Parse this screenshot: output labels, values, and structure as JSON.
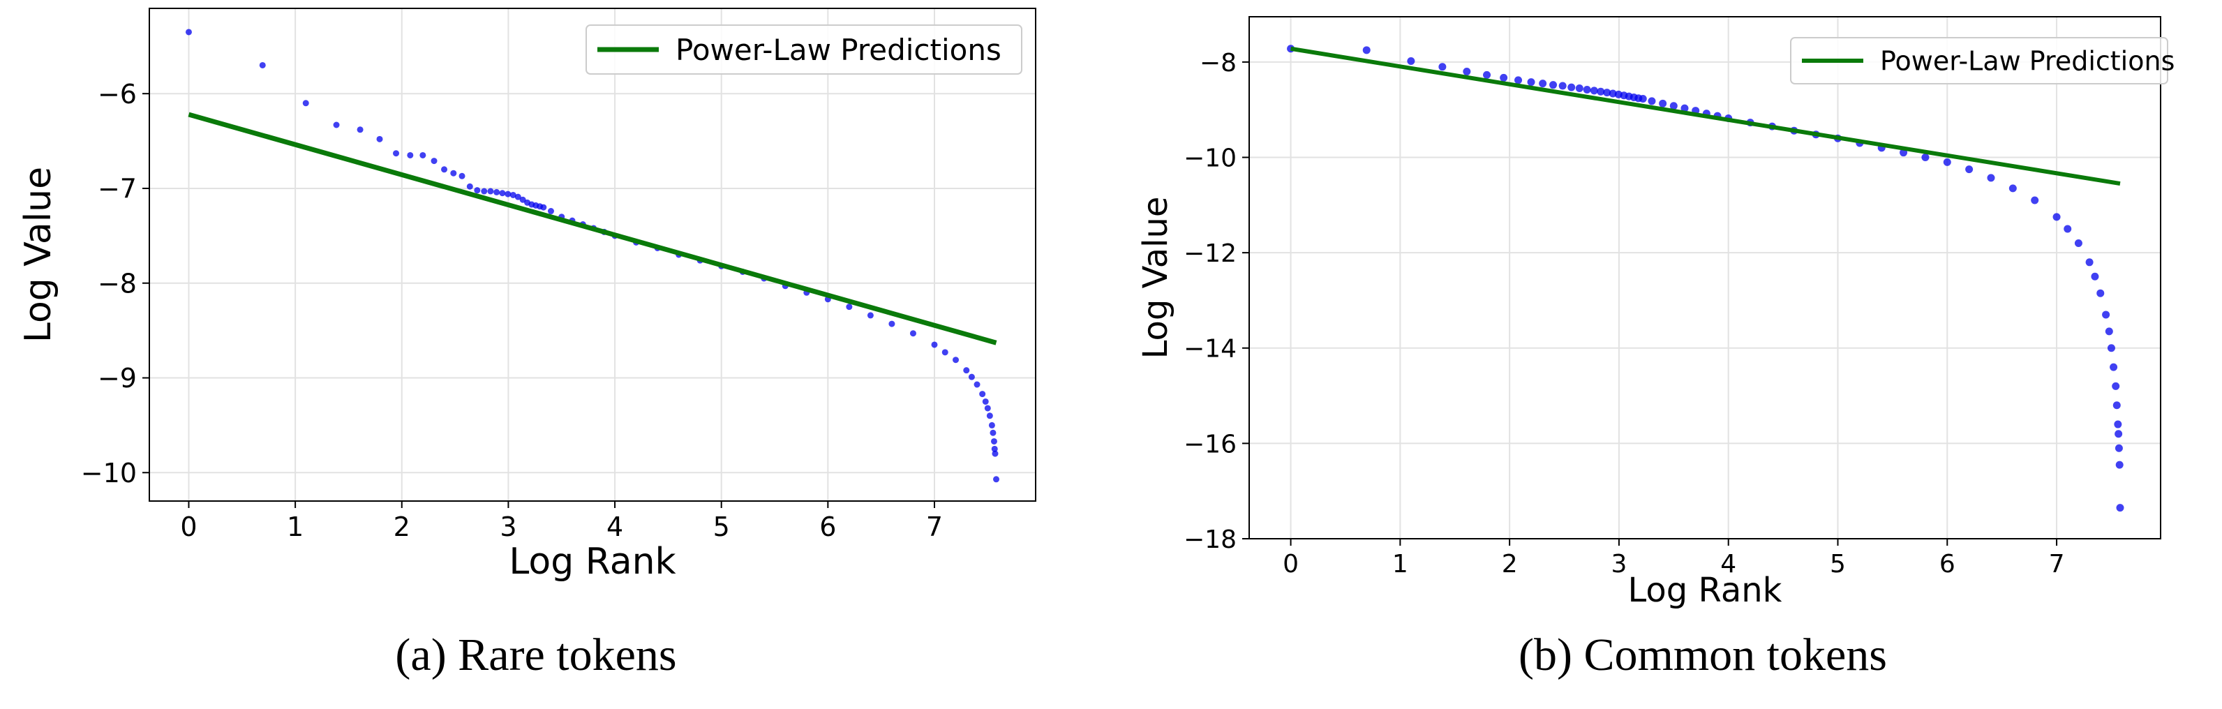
{
  "colors": {
    "points": "#0000ee",
    "fit": "#0a7a0a",
    "grid": "#e2e2e2",
    "frame": "#000000"
  },
  "figures": [
    {
      "caption": "(a) Rare tokens"
    },
    {
      "caption": "(b) Common tokens"
    }
  ],
  "chart_data": [
    {
      "type": "scatter",
      "xlabel": "Log Rank",
      "ylabel": "Log Value",
      "xlim": [
        -0.37,
        7.95
      ],
      "ylim": [
        -10.3,
        -5.1
      ],
      "xticks": [
        0,
        1,
        2,
        3,
        4,
        5,
        6,
        7
      ],
      "yticks": [
        -10,
        -9,
        -8,
        -7,
        -6
      ],
      "grid": true,
      "legend": {
        "position": "top-right",
        "entries": [
          "Power-Law Predictions"
        ]
      },
      "series": [
        {
          "type": "scatter",
          "points": [
            [
              0,
              -5.35
            ],
            [
              0.693,
              -5.7
            ],
            [
              1.099,
              -6.1
            ],
            [
              1.386,
              -6.33
            ],
            [
              1.609,
              -6.38
            ],
            [
              1.792,
              -6.48
            ],
            [
              1.946,
              -6.63
            ],
            [
              2.079,
              -6.65
            ],
            [
              2.197,
              -6.65
            ],
            [
              2.303,
              -6.71
            ],
            [
              2.398,
              -6.8
            ],
            [
              2.485,
              -6.84
            ],
            [
              2.565,
              -6.87
            ],
            [
              2.639,
              -6.98
            ],
            [
              2.708,
              -7.02
            ],
            [
              2.773,
              -7.03
            ],
            [
              2.833,
              -7.03
            ],
            [
              2.89,
              -7.04
            ],
            [
              2.944,
              -7.05
            ],
            [
              2.996,
              -7.06
            ],
            [
              3.045,
              -7.07
            ],
            [
              3.091,
              -7.09
            ],
            [
              3.136,
              -7.12
            ],
            [
              3.178,
              -7.15
            ],
            [
              3.219,
              -7.17
            ],
            [
              3.258,
              -7.18
            ],
            [
              3.296,
              -7.19
            ],
            [
              3.33,
              -7.2
            ],
            [
              3.4,
              -7.24
            ],
            [
              3.5,
              -7.3
            ],
            [
              3.6,
              -7.34
            ],
            [
              3.7,
              -7.38
            ],
            [
              3.8,
              -7.42
            ],
            [
              3.9,
              -7.46
            ],
            [
              4.0,
              -7.5
            ],
            [
              4.2,
              -7.57
            ],
            [
              4.4,
              -7.63
            ],
            [
              4.6,
              -7.7
            ],
            [
              4.8,
              -7.76
            ],
            [
              5.0,
              -7.82
            ],
            [
              5.2,
              -7.88
            ],
            [
              5.4,
              -7.95
            ],
            [
              5.6,
              -8.03
            ],
            [
              5.8,
              -8.1
            ],
            [
              6.0,
              -8.17
            ],
            [
              6.2,
              -8.25
            ],
            [
              6.4,
              -8.34
            ],
            [
              6.6,
              -8.43
            ],
            [
              6.8,
              -8.53
            ],
            [
              7.0,
              -8.65
            ],
            [
              7.1,
              -8.73
            ],
            [
              7.2,
              -8.81
            ],
            [
              7.3,
              -8.92
            ],
            [
              7.35,
              -8.99
            ],
            [
              7.4,
              -9.07
            ],
            [
              7.45,
              -9.17
            ],
            [
              7.48,
              -9.25
            ],
            [
              7.5,
              -9.32
            ],
            [
              7.52,
              -9.4
            ],
            [
              7.54,
              -9.5
            ],
            [
              7.55,
              -9.58
            ],
            [
              7.56,
              -9.67
            ],
            [
              7.565,
              -9.75
            ],
            [
              7.57,
              -9.8
            ],
            [
              7.58,
              -10.07
            ]
          ]
        },
        {
          "name": "Power-Law Predictions",
          "type": "line",
          "points": [
            [
              0,
              -6.22
            ],
            [
              7.58,
              -8.63
            ]
          ]
        }
      ]
    },
    {
      "type": "scatter",
      "xlabel": "Log Rank",
      "ylabel": "Log Value",
      "xlim": [
        -0.38,
        7.95
      ],
      "ylim": [
        -18,
        -7.05
      ],
      "xticks": [
        0,
        1,
        2,
        3,
        4,
        5,
        6,
        7
      ],
      "yticks": [
        -18,
        -16,
        -14,
        -12,
        -10,
        -8
      ],
      "grid": true,
      "legend": {
        "position": "top-right",
        "entries": [
          "Power-Law Predictions"
        ]
      },
      "series": [
        {
          "type": "scatter",
          "points": [
            [
              0,
              -7.72
            ],
            [
              0.693,
              -7.75
            ],
            [
              1.099,
              -7.98
            ],
            [
              1.386,
              -8.1
            ],
            [
              1.609,
              -8.2
            ],
            [
              1.792,
              -8.27
            ],
            [
              1.946,
              -8.33
            ],
            [
              2.079,
              -8.38
            ],
            [
              2.197,
              -8.42
            ],
            [
              2.303,
              -8.45
            ],
            [
              2.398,
              -8.48
            ],
            [
              2.485,
              -8.5
            ],
            [
              2.565,
              -8.53
            ],
            [
              2.639,
              -8.55
            ],
            [
              2.708,
              -8.58
            ],
            [
              2.773,
              -8.6
            ],
            [
              2.833,
              -8.62
            ],
            [
              2.89,
              -8.64
            ],
            [
              2.944,
              -8.66
            ],
            [
              2.996,
              -8.68
            ],
            [
              3.045,
              -8.7
            ],
            [
              3.091,
              -8.72
            ],
            [
              3.136,
              -8.74
            ],
            [
              3.178,
              -8.76
            ],
            [
              3.219,
              -8.77
            ],
            [
              3.3,
              -8.82
            ],
            [
              3.4,
              -8.87
            ],
            [
              3.5,
              -8.92
            ],
            [
              3.6,
              -8.97
            ],
            [
              3.7,
              -9.02
            ],
            [
              3.8,
              -9.08
            ],
            [
              3.9,
              -9.13
            ],
            [
              4.0,
              -9.18
            ],
            [
              4.2,
              -9.27
            ],
            [
              4.4,
              -9.35
            ],
            [
              4.6,
              -9.44
            ],
            [
              4.8,
              -9.52
            ],
            [
              5.0,
              -9.6
            ],
            [
              5.2,
              -9.7
            ],
            [
              5.4,
              -9.8
            ],
            [
              5.6,
              -9.9
            ],
            [
              5.8,
              -10.0
            ],
            [
              6.0,
              -10.1
            ],
            [
              6.2,
              -10.25
            ],
            [
              6.4,
              -10.43
            ],
            [
              6.6,
              -10.65
            ],
            [
              6.8,
              -10.9
            ],
            [
              7.0,
              -11.25
            ],
            [
              7.1,
              -11.5
            ],
            [
              7.2,
              -11.8
            ],
            [
              7.3,
              -12.2
            ],
            [
              7.35,
              -12.5
            ],
            [
              7.4,
              -12.85
            ],
            [
              7.45,
              -13.3
            ],
            [
              7.48,
              -13.65
            ],
            [
              7.5,
              -14.0
            ],
            [
              7.52,
              -14.4
            ],
            [
              7.54,
              -14.8
            ],
            [
              7.55,
              -15.2
            ],
            [
              7.56,
              -15.6
            ],
            [
              7.565,
              -15.8
            ],
            [
              7.57,
              -16.1
            ],
            [
              7.575,
              -16.45
            ],
            [
              7.58,
              -17.35
            ]
          ]
        },
        {
          "name": "Power-Law Predictions",
          "type": "line",
          "points": [
            [
              0,
              -7.72
            ],
            [
              7.58,
              -10.55
            ]
          ]
        }
      ]
    }
  ]
}
